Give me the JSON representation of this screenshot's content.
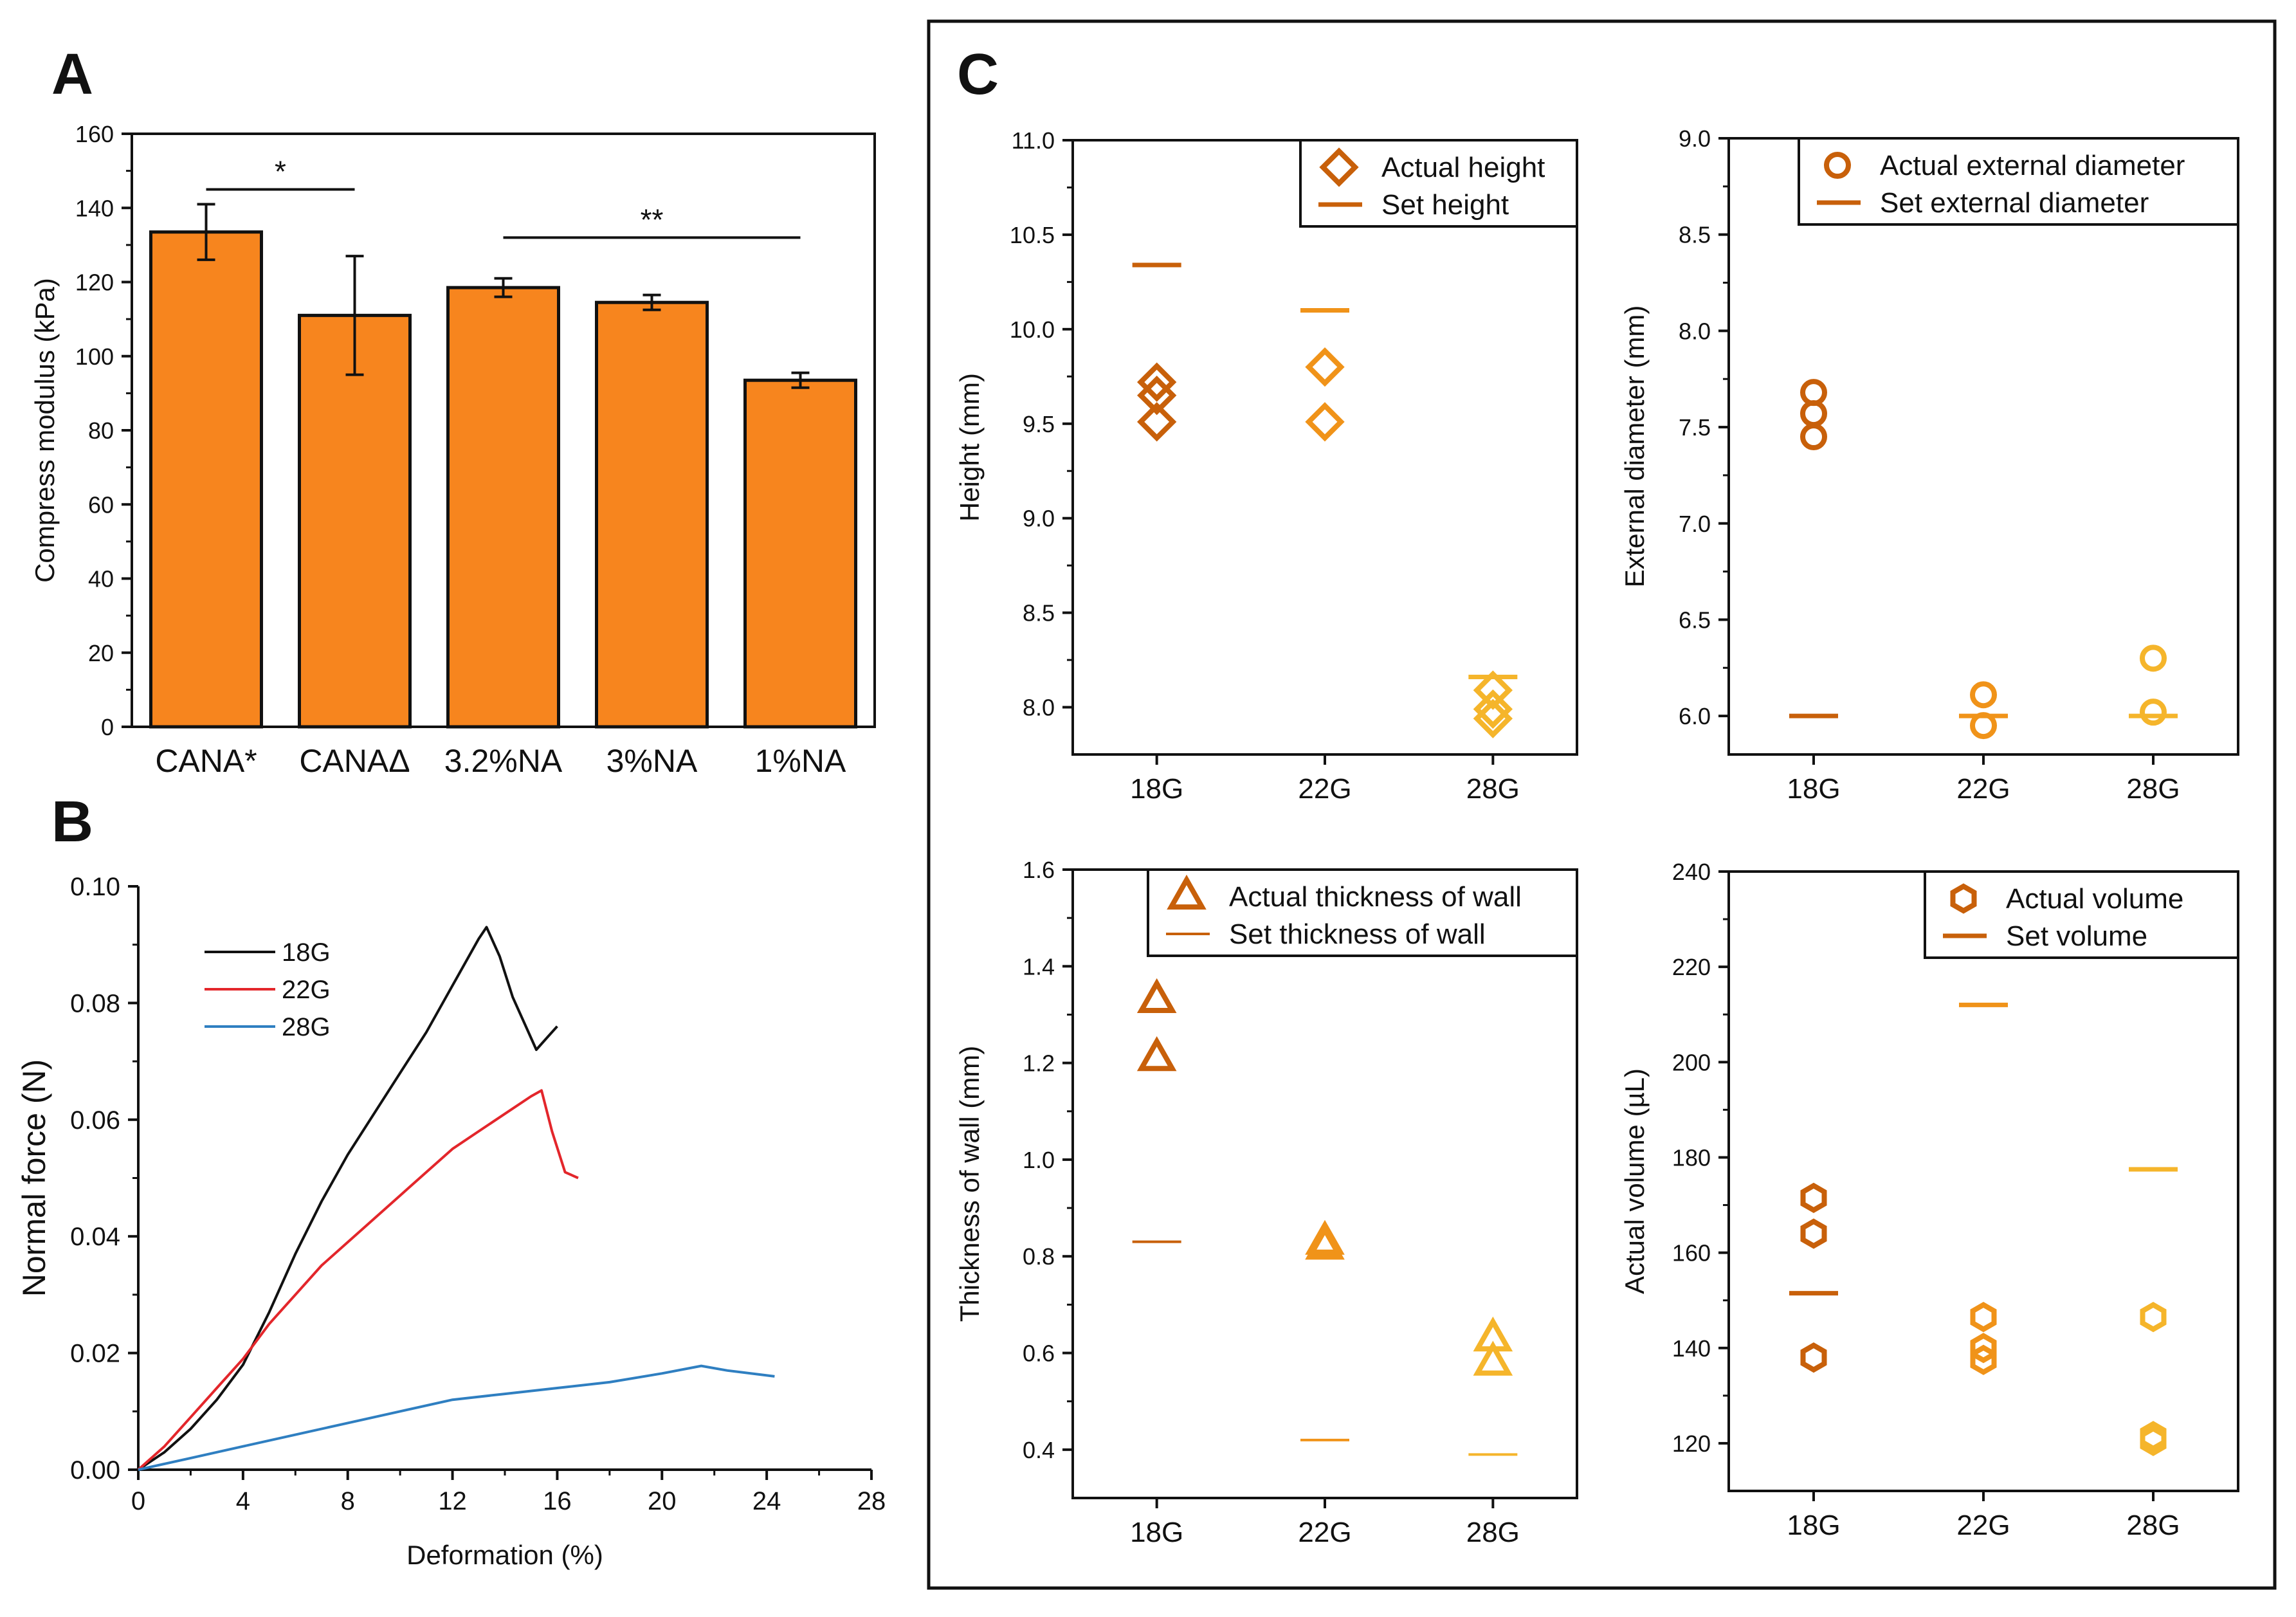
{
  "panels": {
    "A": "A",
    "B": "B",
    "C": "C"
  },
  "colors": {
    "bar": "#f7851e",
    "dark": "#c8600a",
    "mid": "#f09319",
    "light": "#f5b52b",
    "black": "#111111",
    "red": "#e3262b",
    "blue": "#2f7fc1"
  },
  "chart_data": [
    {
      "id": "A",
      "type": "bar",
      "categories": [
        "CANA*",
        "CANAΔ",
        "3.2%NA",
        "3%NA",
        "1%NA"
      ],
      "values": [
        133.5,
        111,
        118.5,
        114.5,
        93.5
      ],
      "errors": [
        7.5,
        16,
        2.5,
        2,
        2
      ],
      "ylabel": "Compress modulus (kPa)",
      "ylim": [
        0,
        160
      ],
      "yticks": [
        0,
        20,
        40,
        60,
        80,
        100,
        120,
        140,
        160
      ],
      "significance": [
        {
          "from": 0,
          "to": 1,
          "label": "*",
          "y": 145
        },
        {
          "from": 2,
          "to": 4,
          "label": "**",
          "y": 132
        }
      ]
    },
    {
      "id": "B",
      "type": "line",
      "xlabel": "Deformation (%)",
      "ylabel": "Normal force (N)",
      "xlim": [
        0,
        28
      ],
      "ylim": [
        0,
        0.1
      ],
      "xticks": [
        0,
        4,
        8,
        12,
        16,
        20,
        24,
        28
      ],
      "yticks": [
        "0.00",
        "0.02",
        "0.04",
        "0.06",
        "0.08",
        "0.10"
      ],
      "legend_position": "top-left",
      "series": [
        {
          "name": "18G",
          "color": "#111111",
          "x": [
            0,
            1,
            2,
            3,
            4,
            5,
            6,
            7,
            8,
            9,
            10,
            11,
            12,
            13,
            13.3,
            13.8,
            14.3,
            14.8,
            15.2,
            15.6,
            16.0
          ],
          "y": [
            0,
            0.003,
            0.007,
            0.012,
            0.018,
            0.027,
            0.037,
            0.046,
            0.054,
            0.061,
            0.068,
            0.075,
            0.083,
            0.091,
            0.093,
            0.088,
            0.081,
            0.076,
            0.072,
            0.074,
            0.076
          ]
        },
        {
          "name": "22G",
          "color": "#e3262b",
          "x": [
            0,
            1,
            2,
            3,
            4,
            5,
            6,
            7,
            8,
            9,
            10,
            11,
            12,
            13,
            14,
            15,
            15.4,
            15.8,
            16.3,
            16.8
          ],
          "y": [
            0,
            0.004,
            0.009,
            0.014,
            0.019,
            0.025,
            0.03,
            0.035,
            0.039,
            0.043,
            0.047,
            0.051,
            0.055,
            0.058,
            0.061,
            0.064,
            0.065,
            0.058,
            0.051,
            0.05
          ]
        },
        {
          "name": "28G",
          "color": "#2f7fc1",
          "x": [
            0,
            2,
            4,
            6,
            8,
            10,
            12,
            14,
            16,
            18,
            20,
            21.5,
            22.5,
            24.3
          ],
          "y": [
            0,
            0.002,
            0.004,
            0.006,
            0.008,
            0.01,
            0.012,
            0.013,
            0.014,
            0.015,
            0.0165,
            0.0178,
            0.017,
            0.016
          ]
        }
      ]
    },
    {
      "id": "C1",
      "type": "scatter",
      "categories": [
        "18G",
        "22G",
        "28G"
      ],
      "ylabel": "Height (mm)",
      "ylim": [
        7.75,
        11.0
      ],
      "yticks": [
        "8.0",
        "8.5",
        "9.0",
        "9.5",
        "10.0",
        "10.5",
        "11.0"
      ],
      "legend": [
        {
          "label": "Actual height",
          "marker": "diamond"
        },
        {
          "label": "Set height",
          "marker": "line"
        }
      ],
      "actual": [
        [
          9.72,
          9.65,
          9.51
        ],
        [
          9.8,
          9.51
        ],
        [
          8.09,
          7.99,
          7.94
        ]
      ],
      "set": [
        10.34,
        10.1,
        8.16
      ],
      "set_width": "thick"
    },
    {
      "id": "C2",
      "type": "scatter",
      "categories": [
        "18G",
        "22G",
        "28G"
      ],
      "ylabel": "External diameter (mm)",
      "ylim": [
        5.8,
        9.0
      ],
      "yticks": [
        "6.0",
        "6.5",
        "7.0",
        "7.5",
        "8.0",
        "8.5",
        "9.0"
      ],
      "legend": [
        {
          "label": "Actual external diameter",
          "marker": "circle"
        },
        {
          "label": "Set external diameter",
          "marker": "line"
        }
      ],
      "actual": [
        [
          7.68,
          7.57,
          7.45
        ],
        [
          6.11,
          5.95
        ],
        [
          6.3,
          6.02
        ]
      ],
      "set": [
        6.0,
        6.0,
        6.0
      ],
      "set_width": "thick"
    },
    {
      "id": "C3",
      "type": "scatter",
      "categories": [
        "18G",
        "22G",
        "28G"
      ],
      "ylabel": "Thickness of wall (mm)",
      "ylim": [
        0.3,
        1.6
      ],
      "yticks": [
        "0.4",
        "0.6",
        "0.8",
        "1.0",
        "1.2",
        "1.4",
        "1.6"
      ],
      "legend": [
        {
          "label": "Actual thickness of wall",
          "marker": "triangle"
        },
        {
          "label": "Set thickness of wall",
          "marker": "line"
        }
      ],
      "actual": [
        [
          1.33,
          1.21
        ],
        [
          0.83,
          0.82
        ],
        [
          0.63,
          0.58
        ]
      ],
      "set": [
        0.83,
        0.42,
        0.39
      ],
      "set_width": "thin"
    },
    {
      "id": "C4",
      "type": "scatter",
      "categories": [
        "18G",
        "22G",
        "28G"
      ],
      "ylabel": "Actual volume (µL)",
      "ylim": [
        110,
        240
      ],
      "yticks": [
        "120",
        "140",
        "160",
        "180",
        "200",
        "220",
        "240"
      ],
      "legend": [
        {
          "label": "Actual volume",
          "marker": "hexagon"
        },
        {
          "label": "Set volume",
          "marker": "line"
        }
      ],
      "actual": [
        [
          171.5,
          164,
          138
        ],
        [
          146.5,
          140,
          137.5
        ],
        [
          146.5,
          121.5,
          120.5
        ]
      ],
      "set": [
        151.5,
        212,
        177.5
      ],
      "set_width": "thick"
    }
  ]
}
